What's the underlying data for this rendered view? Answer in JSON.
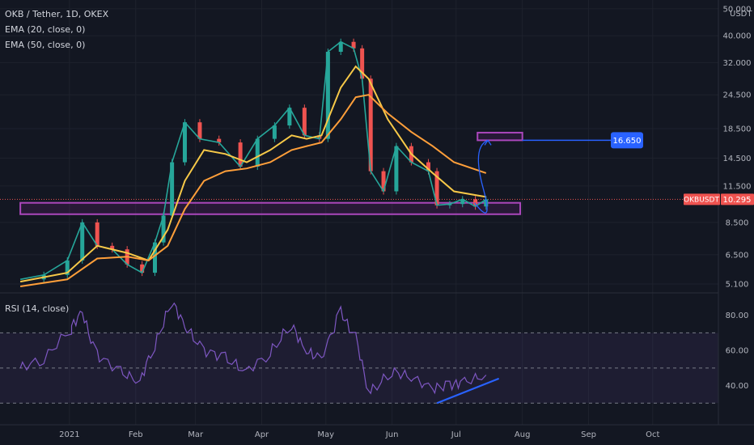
{
  "chart_data": {
    "type": "line",
    "title": "OKB / Tether, 1D, OKEX",
    "indicators": [
      "EMA (20, close, 0)",
      "EMA (50, close, 0)"
    ],
    "price_axis": {
      "unit": "USDT",
      "scale": "log",
      "ticks": [
        "50.000",
        "40.000",
        "32.000",
        "24.500",
        "18.500",
        "14.500",
        "11.500",
        "8.500",
        "6.500",
        "5.100"
      ],
      "range": [
        4.9,
        52
      ]
    },
    "time_axis": {
      "labels": [
        "2021",
        "Feb",
        "Mar",
        "Apr",
        "May",
        "Jun",
        "Jul",
        "Aug",
        "Sep",
        "Oct"
      ]
    },
    "price_series": {
      "name": "OKBUSDT",
      "x": [
        "2020-12-09",
        "2020-12-20",
        "2020-12-31",
        "2021-01-07",
        "2021-01-14",
        "2021-01-21",
        "2021-01-28",
        "2021-02-04",
        "2021-02-10",
        "2021-02-14",
        "2021-02-18",
        "2021-02-24",
        "2021-03-03",
        "2021-03-12",
        "2021-03-22",
        "2021-03-30",
        "2021-04-07",
        "2021-04-14",
        "2021-04-21",
        "2021-04-28",
        "2021-05-02",
        "2021-05-08",
        "2021-05-14",
        "2021-05-18",
        "2021-05-22",
        "2021-05-28",
        "2021-06-03",
        "2021-06-10",
        "2021-06-18",
        "2021-06-22",
        "2021-06-28",
        "2021-07-04",
        "2021-07-10",
        "2021-07-15"
      ],
      "y": [
        5.3,
        5.5,
        6.2,
        8.5,
        7.0,
        6.8,
        6.0,
        5.6,
        7.2,
        9.0,
        14.0,
        19.5,
        17.0,
        16.5,
        13.5,
        17.0,
        19.0,
        22.0,
        17.5,
        17.0,
        35.0,
        38.0,
        36.0,
        28.0,
        13.0,
        11.0,
        16.0,
        14.0,
        13.0,
        9.8,
        9.9,
        10.3,
        9.7,
        10.295
      ]
    },
    "ema_20": {
      "name": "EMA (20, close, 0)",
      "color": "#f7c948",
      "x": [
        "2020-12-09",
        "2020-12-31",
        "2021-01-14",
        "2021-01-28",
        "2021-02-07",
        "2021-02-16",
        "2021-02-24",
        "2021-03-05",
        "2021-03-15",
        "2021-03-25",
        "2021-04-05",
        "2021-04-15",
        "2021-04-22",
        "2021-04-29",
        "2021-05-08",
        "2021-05-15",
        "2021-05-21",
        "2021-05-30",
        "2021-06-10",
        "2021-06-20",
        "2021-06-30",
        "2021-07-15"
      ],
      "y": [
        5.2,
        5.6,
        7.0,
        6.6,
        6.2,
        8.0,
        12.0,
        15.5,
        15.0,
        14.0,
        15.5,
        17.5,
        17.0,
        17.5,
        26.0,
        31.0,
        28.0,
        20.0,
        15.0,
        12.8,
        11.0,
        10.5
      ]
    },
    "ema_50": {
      "name": "EMA (50, close, 0)",
      "color": "#ff9f3a",
      "x": [
        "2020-12-09",
        "2020-12-31",
        "2021-01-14",
        "2021-01-28",
        "2021-02-07",
        "2021-02-16",
        "2021-02-24",
        "2021-03-05",
        "2021-03-15",
        "2021-03-25",
        "2021-04-05",
        "2021-04-15",
        "2021-04-22",
        "2021-04-29",
        "2021-05-08",
        "2021-05-15",
        "2021-05-21",
        "2021-05-30",
        "2021-06-10",
        "2021-06-20",
        "2021-06-30",
        "2021-07-15"
      ],
      "y": [
        5.0,
        5.3,
        6.3,
        6.4,
        6.2,
        7.0,
        9.5,
        12.0,
        13.0,
        13.3,
        14.0,
        15.5,
        16.0,
        16.5,
        20.0,
        24.0,
        24.5,
        21.0,
        18.0,
        16.0,
        14.0,
        12.8
      ]
    },
    "current_price": {
      "label": "OKBUSDT",
      "value": "10.295"
    },
    "support_zone": {
      "from": "2020-12-09",
      "to": "2021-07-31",
      "low": 9.1,
      "high": 10.0
    },
    "target_zone": {
      "from": "2021-07-11",
      "to": "2021-08-01",
      "low": 16.8,
      "high": 17.9
    },
    "target_label": "16.650",
    "projection_arrow": {
      "from_date": "2021-07-18",
      "from_price": 9.4,
      "to_date": "2021-07-31",
      "to_price": 16.8
    },
    "rsi": {
      "title": "RSI (14, close)",
      "range": [
        20,
        90
      ],
      "ticks": [
        "80.00",
        "60.00",
        "40.00"
      ],
      "levels": [
        30,
        50,
        70
      ],
      "x": [
        "2020-12-09",
        "2020-12-20",
        "2021-01-02",
        "2021-01-07",
        "2021-01-14",
        "2021-01-25",
        "2021-02-03",
        "2021-02-10",
        "2021-02-18",
        "2021-02-24",
        "2021-03-05",
        "2021-03-15",
        "2021-03-25",
        "2021-04-05",
        "2021-04-15",
        "2021-04-22",
        "2021-04-29",
        "2021-05-08",
        "2021-05-15",
        "2021-05-22",
        "2021-06-01",
        "2021-06-10",
        "2021-06-20",
        "2021-06-28",
        "2021-07-05",
        "2021-07-15"
      ],
      "y": [
        50,
        55,
        72,
        82,
        58,
        48,
        42,
        62,
        88,
        74,
        60,
        56,
        48,
        58,
        75,
        60,
        55,
        82,
        68,
        36,
        48,
        45,
        38,
        40,
        42,
        46
      ],
      "divergence": {
        "from_date": "2021-06-22",
        "from_value": 30,
        "to_date": "2021-07-21",
        "to_value": 44
      }
    }
  }
}
